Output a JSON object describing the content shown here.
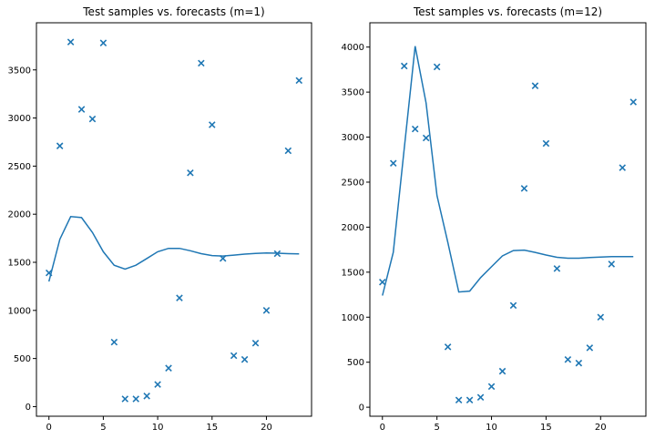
{
  "chart_data": [
    {
      "type": "scatter",
      "title": "Test samples vs. forecasts (m=1)",
      "xlim": [
        -1.15,
        24.15
      ],
      "ylim": [
        -100,
        3990
      ],
      "xticks": [
        0,
        5,
        10,
        15,
        20
      ],
      "yticks": [
        0,
        500,
        1000,
        1500,
        2000,
        2500,
        3000,
        3500
      ],
      "color": "#1f77b4",
      "samples": {
        "x": [
          0,
          1,
          2,
          3,
          4,
          5,
          6,
          7,
          8,
          9,
          10,
          11,
          12,
          13,
          14,
          15,
          16,
          17,
          18,
          19,
          20,
          21,
          22,
          23
        ],
        "y": [
          1390,
          2710,
          3790,
          3090,
          2990,
          3780,
          670,
          80,
          80,
          110,
          230,
          400,
          1130,
          2430,
          3570,
          2930,
          1540,
          530,
          490,
          660,
          1000,
          1590,
          2660,
          3390
        ]
      },
      "forecast": {
        "x": [
          0,
          1,
          2,
          3,
          4,
          5,
          6,
          7,
          8,
          9,
          10,
          11,
          12,
          13,
          14,
          15,
          16,
          17,
          18,
          19,
          20,
          21,
          22,
          23
        ],
        "y": [
          1300,
          1740,
          1975,
          1965,
          1810,
          1610,
          1470,
          1430,
          1470,
          1540,
          1610,
          1645,
          1645,
          1620,
          1590,
          1570,
          1565,
          1575,
          1585,
          1593,
          1597,
          1595,
          1590,
          1587
        ]
      }
    },
    {
      "type": "scatter",
      "title": "Test samples vs. forecasts (m=12)",
      "xlim": [
        -1.15,
        24.15
      ],
      "ylim": [
        -100,
        4270
      ],
      "xticks": [
        0,
        5,
        10,
        15,
        20
      ],
      "yticks": [
        0,
        500,
        1000,
        1500,
        2000,
        2500,
        3000,
        3500,
        4000
      ],
      "color": "#1f77b4",
      "samples": {
        "x": [
          0,
          1,
          2,
          3,
          4,
          5,
          6,
          7,
          8,
          9,
          10,
          11,
          12,
          13,
          14,
          15,
          16,
          17,
          18,
          19,
          20,
          21,
          22,
          23
        ],
        "y": [
          1390,
          2710,
          3790,
          3090,
          2990,
          3780,
          670,
          80,
          80,
          110,
          230,
          400,
          1130,
          2430,
          3570,
          2930,
          1540,
          530,
          490,
          660,
          1000,
          1590,
          2660,
          3390
        ]
      },
      "forecast": {
        "x": [
          0,
          1,
          2,
          3,
          4,
          5,
          6,
          7,
          8,
          9,
          10,
          11,
          12,
          13,
          14,
          15,
          16,
          17,
          18,
          19,
          20,
          21,
          22,
          23
        ],
        "y": [
          1240,
          1720,
          2870,
          4010,
          3380,
          2350,
          1830,
          1280,
          1290,
          1440,
          1560,
          1680,
          1740,
          1745,
          1720,
          1690,
          1665,
          1655,
          1655,
          1662,
          1668,
          1672,
          1673,
          1673
        ]
      }
    }
  ]
}
